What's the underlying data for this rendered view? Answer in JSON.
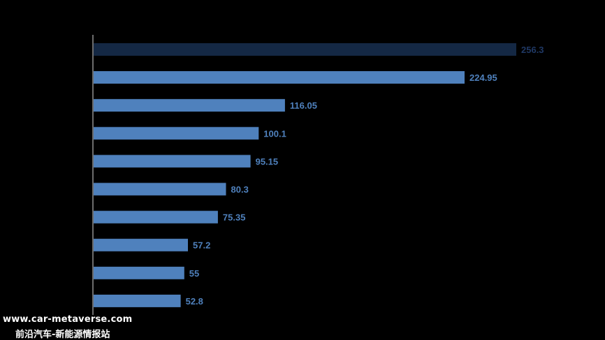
{
  "chart_data": {
    "type": "bar",
    "orientation": "horizontal",
    "categories": [
      "",
      "",
      "",
      "",
      "",
      "",
      "",
      "",
      "",
      ""
    ],
    "values": [
      256.3,
      224.95,
      116.05,
      100.1,
      95.15,
      80.3,
      75.35,
      57.2,
      55,
      52.8
    ],
    "value_labels": [
      "256.3",
      "224.95",
      "116.05",
      "100.1",
      "95.15",
      "80.3",
      "75.35",
      "57.2",
      "55",
      "52.8"
    ],
    "title": "",
    "xlabel": "",
    "ylabel": "",
    "xlim": [
      0,
      280
    ],
    "grid": false,
    "legend": "none",
    "colors": {
      "highlight_bar": "#142844",
      "bar": "#4f81bd",
      "highlight_label": "#1f3864",
      "label": "#4f81bd",
      "axis": "#d9d9d9",
      "background": "#000000"
    }
  },
  "watermark": {
    "line1": "www.car-metaverse.com",
    "line2": "前沿汽车-新能源情报站"
  }
}
